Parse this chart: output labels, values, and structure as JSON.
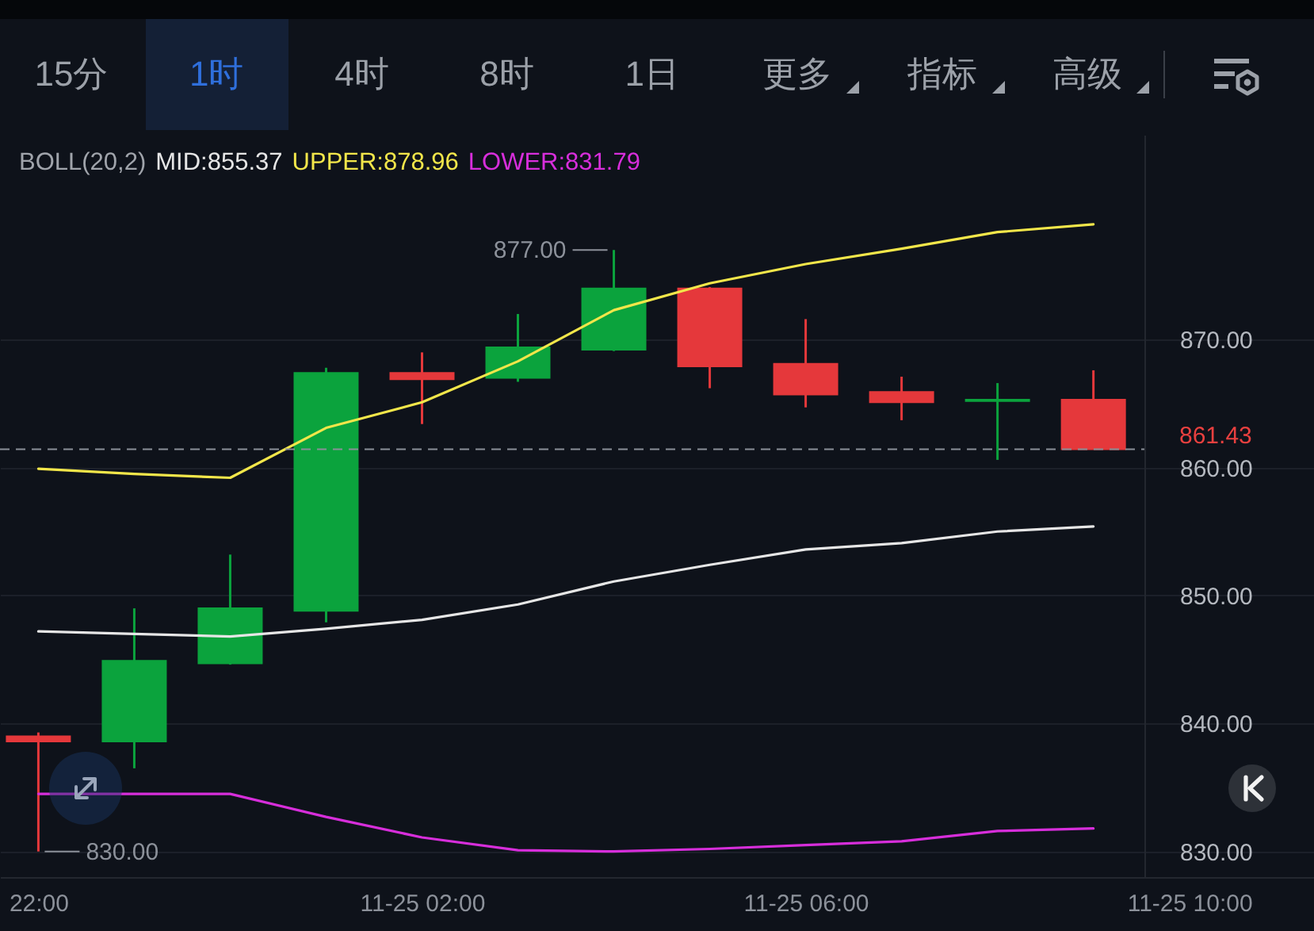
{
  "chart_data": {
    "type": "candlestick",
    "legend_title": "BOLL(20,2)",
    "legend": "top left",
    "x": [
      "--11-24T22:00",
      "--11-24T23:00",
      "--11-25T00:00",
      "--11-25T01:00",
      "--11-25T02:00",
      "--11-25T03:00",
      "--11-25T04:00",
      "--11-25T05:00",
      "--11-25T06:00",
      "--11-25T07:00",
      "--11-25T08:00",
      "--11-25T09:00"
    ],
    "ohlc": [
      [
        839.0,
        839.3,
        830.0,
        838.6
      ],
      [
        838.6,
        849.0,
        836.5,
        844.9
      ],
      [
        844.7,
        853.2,
        844.6,
        849.0
      ],
      [
        848.8,
        867.8,
        847.9,
        867.4
      ],
      [
        867.4,
        869.0,
        863.4,
        866.9
      ],
      [
        867.0,
        872.0,
        866.7,
        869.4
      ],
      [
        869.2,
        877.0,
        869.1,
        874.0
      ],
      [
        874.0,
        874.1,
        866.2,
        867.9
      ],
      [
        868.1,
        871.6,
        864.7,
        865.7
      ],
      [
        865.9,
        867.1,
        863.7,
        865.1
      ],
      [
        865.2,
        866.6,
        860.6,
        865.3
      ],
      [
        865.3,
        867.6,
        861.43,
        861.43
      ]
    ],
    "colors": [
      "#e5383b",
      "#0ba33d",
      "#0ba33d",
      "#0ba33d",
      "#e5383b",
      "#0ba33d",
      "#0ba33d",
      "#e5383b",
      "#e5383b",
      "#e5383b",
      "#0ba33d",
      "#e5383b"
    ],
    "series": [
      {
        "name": "MID:855.37",
        "type": "line",
        "color": "#e6e6e6",
        "values": [
          847.2,
          847.0,
          846.8,
          847.4,
          848.1,
          849.3,
          851.1,
          852.4,
          853.6,
          854.1,
          855.0,
          855.4
        ]
      },
      {
        "name": "UPPER:878.96",
        "type": "line",
        "color": "#f2e64a",
        "values": [
          859.9,
          859.5,
          859.2,
          863.1,
          865.1,
          868.3,
          872.3,
          874.4,
          875.9,
          877.1,
          878.4,
          879.0
        ]
      },
      {
        "name": "LOWER:831.79",
        "type": "line",
        "color": "#d72edb",
        "values": [
          834.5,
          834.5,
          834.5,
          832.7,
          831.1,
          830.1,
          830.0,
          830.2,
          830.5,
          830.8,
          831.6,
          831.8
        ]
      }
    ],
    "xlim": [
      "--11-24T21:36",
      "--11-25T11:18"
    ],
    "xticks": [
      {
        "value": "--11-24T22:00",
        "label": "22:00"
      },
      {
        "value": "--11-25T02:00",
        "label": "11-25 02:00"
      },
      {
        "value": "--11-25T06:00",
        "label": "11-25 06:00"
      },
      {
        "value": "--11-25T10:00",
        "label": "11-25 10:00"
      }
    ],
    "ylim": [
      828,
      886
    ],
    "yticks": [
      {
        "value": 830,
        "label": "830.00"
      },
      {
        "value": 840,
        "label": "840.00"
      },
      {
        "value": 850,
        "label": "850.00"
      },
      {
        "value": 860,
        "label": "860.00"
      },
      {
        "value": 870,
        "label": "870.00"
      }
    ],
    "grid": "y",
    "ref_lines": [
      {
        "axis": "y",
        "value": 861.43,
        "label": "861.43",
        "color": "#8a8f98",
        "line_style": "dashed"
      }
    ],
    "annotations": [
      "15分",
      "1时",
      "4时",
      "8时",
      "1日",
      "更多",
      "指标",
      "高级",
      {
        "text": "877.00",
        "x": "--11-25T04:00",
        "y": 877.0
      },
      {
        "text": "830.00",
        "x": "--11-24T22:00",
        "y": 830.0
      }
    ]
  }
}
